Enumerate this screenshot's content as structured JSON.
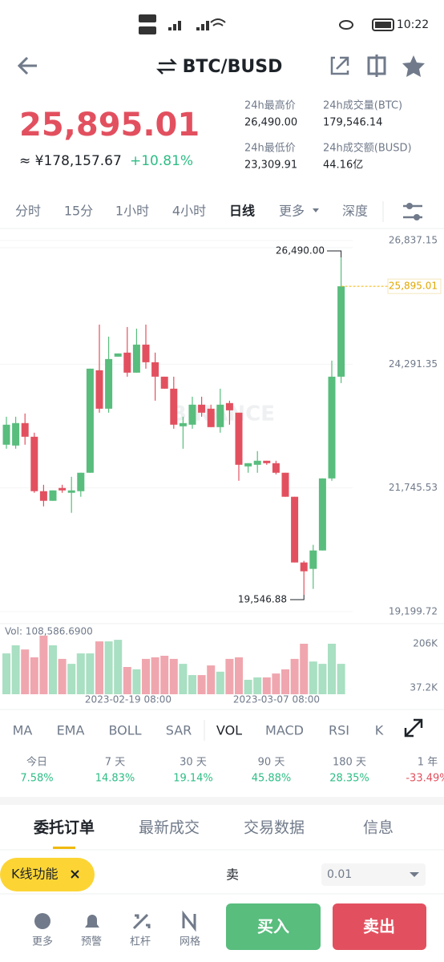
{
  "status_bar": {
    "time": "10:22"
  },
  "header": {
    "title": "BTC/BUSD"
  },
  "ticker": {
    "price": "25,895.01",
    "cny": "≈ ¥178,157.67",
    "change": "+10.81%",
    "stats": [
      {
        "label": "24h最高价",
        "value": "26,490.00"
      },
      {
        "label": "24h成交量(BTC)",
        "value": "179,546.14"
      },
      {
        "label": "24h最低价",
        "value": "23,309.91"
      },
      {
        "label": "24h成交额(BUSD)",
        "value": "44.16亿"
      }
    ]
  },
  "intervals": [
    "分时",
    "15分",
    "1小时",
    "4小时",
    "日线",
    "更多",
    "深度"
  ],
  "active_interval": 4,
  "kline": {
    "watermark": "BINANCE",
    "ylim": [
      19199.72,
      26837.15
    ],
    "yticks": [
      {
        "value": 26837.15,
        "label": "26,837.15"
      },
      {
        "value": 24291.35,
        "label": "24,291.35"
      },
      {
        "value": 21745.53,
        "label": "21,745.53"
      },
      {
        "value": 19199.72,
        "label": "19,199.72"
      }
    ],
    "high_label": "26,490.00",
    "low_label": "19,546.88",
    "last_price": {
      "value": 25895.01,
      "label": "25,895.01"
    },
    "candles": [
      {
        "open": 22635,
        "high": 23211,
        "low": 22552,
        "close": 23047
      },
      {
        "open": 22618,
        "high": 23211,
        "low": 22552,
        "close": 23080
      },
      {
        "open": 23080,
        "high": 23277,
        "low": 22635,
        "close": 22799
      },
      {
        "open": 22799,
        "high": 22882,
        "low": 21646,
        "close": 21679
      },
      {
        "open": 21679,
        "high": 21810,
        "low": 21366,
        "close": 21481
      },
      {
        "open": 21481,
        "high": 21695,
        "low": 21481,
        "close": 21695
      },
      {
        "open": 21745,
        "high": 21810,
        "low": 21646,
        "close": 21695
      },
      {
        "open": 21646,
        "high": 21975,
        "low": 21234,
        "close": 21695
      },
      {
        "open": 21679,
        "high": 22058,
        "low": 21564,
        "close": 22058
      },
      {
        "open": 22058,
        "high": 24200,
        "low": 22058,
        "close": 24200
      },
      {
        "open": 24167,
        "high": 25107,
        "low": 23294,
        "close": 23376
      },
      {
        "open": 23376,
        "high": 24859,
        "low": 23294,
        "close": 24398
      },
      {
        "open": 24447,
        "high": 24513,
        "low": 24447,
        "close": 24513
      },
      {
        "open": 24530,
        "high": 25057,
        "low": 24035,
        "close": 24118
      },
      {
        "open": 24118,
        "high": 25024,
        "low": 24118,
        "close": 24695
      },
      {
        "open": 24695,
        "high": 25107,
        "low": 24200,
        "close": 24332
      },
      {
        "open": 24332,
        "high": 24530,
        "low": 23541,
        "close": 24035
      },
      {
        "open": 24035,
        "high": 24035,
        "low": 23788,
        "close": 23788
      },
      {
        "open": 23788,
        "high": 24035,
        "low": 22964,
        "close": 23047
      },
      {
        "open": 23014,
        "high": 23211,
        "low": 22552,
        "close": 23080
      },
      {
        "open": 23047,
        "high": 23623,
        "low": 22964,
        "close": 23459
      },
      {
        "open": 23459,
        "high": 23623,
        "low": 23211,
        "close": 23294
      },
      {
        "open": 23376,
        "high": 23459,
        "low": 22997,
        "close": 22997
      },
      {
        "open": 22997,
        "high": 23788,
        "low": 22882,
        "close": 23459
      },
      {
        "open": 23492,
        "high": 23541,
        "low": 23047,
        "close": 23343
      },
      {
        "open": 23294,
        "high": 23294,
        "low": 21893,
        "close": 22222
      },
      {
        "open": 22189,
        "high": 22255,
        "low": 22058,
        "close": 22255
      },
      {
        "open": 22222,
        "high": 22503,
        "low": 22058,
        "close": 22305
      },
      {
        "open": 22305,
        "high": 22305,
        "low": 22222,
        "close": 22255
      },
      {
        "open": 22255,
        "high": 22305,
        "low": 22025,
        "close": 22058
      },
      {
        "open": 22058,
        "high": 22058,
        "low": 21564,
        "close": 21564
      },
      {
        "open": 21564,
        "high": 21564,
        "low": 20212,
        "close": 20212
      },
      {
        "open": 20212,
        "high": 20245,
        "low": 19546.88,
        "close": 20031
      },
      {
        "open": 20080,
        "high": 20575,
        "low": 19668,
        "close": 20459
      },
      {
        "open": 20459,
        "high": 21942,
        "low": 20459,
        "close": 21942
      },
      {
        "open": 21942,
        "high": 24365,
        "low": 21893,
        "close": 24035
      },
      {
        "open": 24035,
        "high": 26490,
        "low": 23904,
        "close": 25895.01
      }
    ],
    "volume": {
      "label": "Vol: 108,586.6900",
      "yticks": [
        {
          "value": 206,
          "label": "206K"
        },
        {
          "value": 37.2,
          "label": "37.2K"
        }
      ],
      "values": [
        169,
        200,
        184,
        154,
        237,
        200,
        148,
        129,
        169,
        169,
        215,
        215,
        221,
        117,
        108,
        148,
        154,
        160,
        148,
        129,
        86,
        86,
        123,
        99,
        148,
        154,
        68,
        77,
        77,
        92,
        108,
        148,
        206,
        138,
        129,
        206,
        129
      ]
    },
    "dates": [
      "2023-02-19 08:00",
      "2023-03-07 08:00"
    ]
  },
  "indicators": [
    "MA",
    "EMA",
    "BOLL",
    "SAR",
    "VOL",
    "MACD",
    "RSI",
    "K"
  ],
  "active_indicator": 4,
  "performance": [
    {
      "period": "今日",
      "change": "7.58%"
    },
    {
      "period": "7 天",
      "change": "14.83%"
    },
    {
      "period": "30 天",
      "change": "19.14%"
    },
    {
      "period": "90 天",
      "change": "45.88%"
    },
    {
      "period": "180 天",
      "change": "28.35%"
    },
    {
      "period": "1 年",
      "change": "-33.49%"
    }
  ],
  "tabs": [
    "委托订单",
    "最新成交",
    "交易数据",
    "信息"
  ],
  "active_tab": 0,
  "order": {
    "chip": "K线功能",
    "side": "卖",
    "amount": "0.01"
  },
  "bottom_nav": [
    "更多",
    "预警",
    "杠杆",
    "网格"
  ],
  "buy": "买入",
  "sell": "卖出"
}
